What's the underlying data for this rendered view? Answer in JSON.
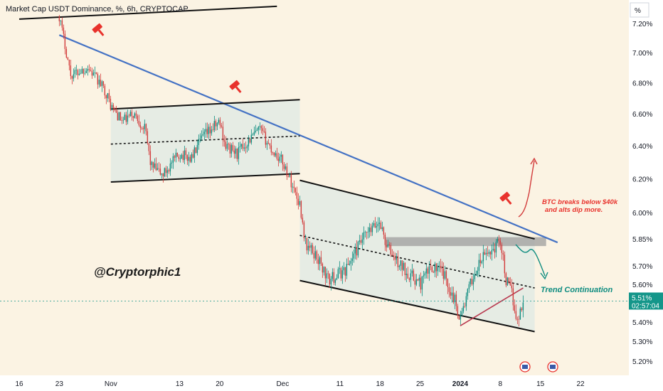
{
  "title": "Market Cap USDT Dominance, %, 6h, CRYPTOCAP",
  "unit_label": "%",
  "watermark": "@Cryptorphic1",
  "annotations": {
    "bearish": [
      "BTC breaks below $40k",
      "and alts dip more."
    ],
    "trend": "Trend Continuation"
  },
  "price_badge": {
    "price": "5.51%",
    "countdown": "02:57:04"
  },
  "colors": {
    "background": "#fbf3e3",
    "up_candle": "#0e8c80",
    "down_candle": "#d23b3b",
    "blue_trendline": "#4472c4",
    "channel_fill": "#dfe9e4",
    "resistance_zone": "#9e9e9e",
    "bearish_text": "#e8322c",
    "trend_text": "#0e8c80",
    "price_badge": "#14968a"
  },
  "chart_data": {
    "type": "candlestick",
    "title": "Market Cap USDT Dominance, %, 6h, CRYPTOCAP",
    "y_axis": {
      "ticks": [
        "7.20%",
        "7.00%",
        "6.80%",
        "6.60%",
        "6.40%",
        "6.20%",
        "6.00%",
        "5.85%",
        "5.70%",
        "5.60%",
        "5.40%",
        "5.30%",
        "5.20%"
      ],
      "range": [
        5.18,
        7.3
      ],
      "scale": "log",
      "position": "right"
    },
    "x_axis": {
      "ticks": [
        "16",
        "23",
        "Nov",
        "13",
        "20",
        "Dec",
        "11",
        "18",
        "25",
        "2024",
        "8",
        "15",
        "22"
      ],
      "bold_tick": "2024",
      "range": [
        "2023-10-16",
        "2024-01-22"
      ]
    },
    "last_price": 5.51,
    "price_path": [
      [
        "2023-10-23",
        7.25
      ],
      [
        "2023-10-25",
        6.85
      ],
      [
        "2023-10-28",
        6.9
      ],
      [
        "2023-10-31",
        6.75
      ],
      [
        "2023-11-01",
        6.65
      ],
      [
        "2023-11-03",
        6.55
      ],
      [
        "2023-11-05",
        6.6
      ],
      [
        "2023-11-07",
        6.5
      ],
      [
        "2023-11-08",
        6.28
      ],
      [
        "2023-11-10",
        6.22
      ],
      [
        "2023-11-13",
        6.35
      ],
      [
        "2023-11-15",
        6.32
      ],
      [
        "2023-11-17",
        6.45
      ],
      [
        "2023-11-20",
        6.55
      ],
      [
        "2023-11-21",
        6.4
      ],
      [
        "2023-11-23",
        6.35
      ],
      [
        "2023-11-25",
        6.43
      ],
      [
        "2023-11-27",
        6.5
      ],
      [
        "2023-11-29",
        6.38
      ],
      [
        "2023-12-01",
        6.3
      ],
      [
        "2023-12-02",
        6.22
      ],
      [
        "2023-12-04",
        6.05
      ],
      [
        "2023-12-05",
        5.82
      ],
      [
        "2023-12-07",
        5.75
      ],
      [
        "2023-12-09",
        5.62
      ],
      [
        "2023-12-12",
        5.68
      ],
      [
        "2023-12-15",
        5.85
      ],
      [
        "2023-12-18",
        5.95
      ],
      [
        "2023-12-19",
        5.82
      ],
      [
        "2023-12-21",
        5.72
      ],
      [
        "2023-12-23",
        5.66
      ],
      [
        "2023-12-25",
        5.6
      ],
      [
        "2023-12-27",
        5.7
      ],
      [
        "2023-12-29",
        5.66
      ],
      [
        "2023-12-31",
        5.52
      ],
      [
        "2024-01-01",
        5.42
      ],
      [
        "2024-01-03",
        5.62
      ],
      [
        "2024-01-05",
        5.75
      ],
      [
        "2024-01-07",
        5.8
      ],
      [
        "2024-01-08",
        5.85
      ],
      [
        "2024-01-09",
        5.62
      ],
      [
        "2024-01-10",
        5.55
      ],
      [
        "2024-01-11",
        5.4
      ],
      [
        "2024-01-12",
        5.51
      ]
    ],
    "lines": [
      {
        "name": "blue_descending_trendline",
        "from": [
          "2023-10-23",
          7.12
        ],
        "to": [
          "2024-01-18",
          5.83
        ]
      },
      {
        "name": "upper_black_line",
        "from": [
          "2023-10-16",
          7.23
        ],
        "to": [
          "2023-11-30",
          7.32
        ]
      },
      {
        "name": "range_top",
        "from": [
          "2023-11-01",
          6.63
        ],
        "to": [
          "2023-12-04",
          6.69
        ]
      },
      {
        "name": "range_mid",
        "from": [
          "2023-11-01",
          6.41
        ],
        "to": [
          "2023-12-04",
          6.46
        ]
      },
      {
        "name": "range_bottom",
        "from": [
          "2023-11-01",
          6.18
        ],
        "to": [
          "2023-12-04",
          6.23
        ]
      },
      {
        "name": "channel_top",
        "from": [
          "2023-12-04",
          6.19
        ],
        "to": [
          "2024-01-14",
          5.85
        ]
      },
      {
        "name": "channel_mid",
        "from": [
          "2023-12-04",
          5.87
        ],
        "to": [
          "2024-01-14",
          5.58
        ]
      },
      {
        "name": "channel_bottom",
        "from": [
          "2023-12-04",
          5.62
        ],
        "to": [
          "2024-01-14",
          5.35
        ]
      },
      {
        "name": "red_support",
        "from": [
          "2024-01-01",
          5.38
        ],
        "to": [
          "2024-01-12",
          5.58
        ]
      }
    ],
    "resistance_zone": {
      "from": "2023-12-19",
      "to": "2024-01-16",
      "low": 5.81,
      "high": 5.86
    }
  }
}
